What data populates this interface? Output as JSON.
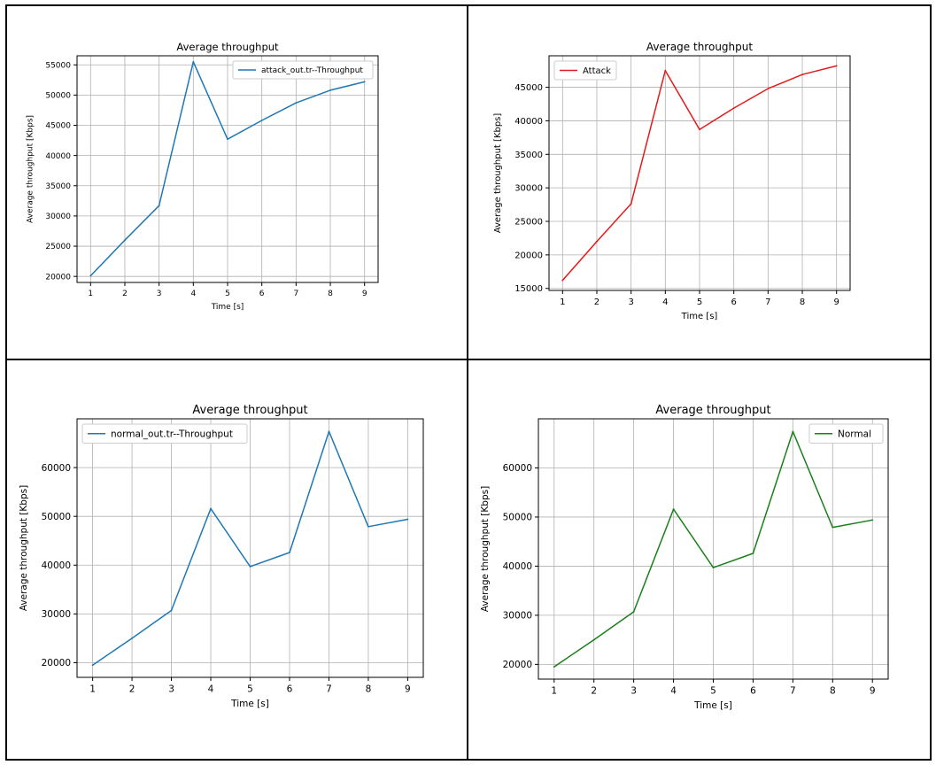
{
  "chart_data": [
    {
      "type": "line",
      "title": "Average throughput",
      "xlabel": "Time [s]",
      "ylabel": "Average throughput [Kbps]",
      "x": [
        1,
        2,
        3,
        4,
        5,
        6,
        7,
        8,
        9
      ],
      "xticks": [
        "1",
        "2",
        "3",
        "4",
        "5",
        "6",
        "7",
        "8",
        "9"
      ],
      "yticks": [
        20000,
        25000,
        30000,
        35000,
        40000,
        45000,
        50000,
        55000
      ],
      "ylim": [
        19000,
        56500
      ],
      "grid": true,
      "legend_position": "top-right",
      "series": [
        {
          "name": "attack_out.tr--Throughput",
          "color": "#1f77b4",
          "values": [
            20100,
            26000,
            31700,
            55500,
            42700,
            45800,
            48700,
            50800,
            52200
          ]
        }
      ]
    },
    {
      "type": "line",
      "title": "Average throughput",
      "xlabel": "Time [s]",
      "ylabel": "Average throughput [Kbps]",
      "x": [
        1,
        2,
        3,
        4,
        5,
        6,
        7,
        8,
        9
      ],
      "xticks": [
        "1",
        "2",
        "3",
        "4",
        "5",
        "6",
        "7",
        "8",
        "9"
      ],
      "yticks": [
        15000,
        20000,
        25000,
        30000,
        35000,
        40000,
        45000
      ],
      "ylim": [
        14700,
        49700
      ],
      "grid": true,
      "legend_position": "top-left",
      "series": [
        {
          "name": "Attack",
          "color": "#e41a1c",
          "values": [
            16200,
            22000,
            27600,
            47500,
            38700,
            41900,
            44800,
            46900,
            48200
          ]
        }
      ]
    },
    {
      "type": "line",
      "title": "Average throughput",
      "xlabel": "Time [s]",
      "ylabel": "Average throughput [Kbps]",
      "x": [
        1,
        2,
        3,
        4,
        5,
        6,
        7,
        8,
        9
      ],
      "xticks": [
        "1",
        "2",
        "3",
        "4",
        "5",
        "6",
        "7",
        "8",
        "9"
      ],
      "yticks": [
        20000,
        30000,
        40000,
        50000,
        60000
      ],
      "ylim": [
        17000,
        70000
      ],
      "grid": true,
      "legend_position": "top-left",
      "series": [
        {
          "name": "normal_out.tr--Throughput",
          "color": "#1f77b4",
          "values": [
            19500,
            25000,
            30700,
            51600,
            39700,
            42600,
            67400,
            47900,
            49400
          ]
        }
      ]
    },
    {
      "type": "line",
      "title": "Average throughput",
      "xlabel": "Time [s]",
      "ylabel": "Average throughput [Kbps]",
      "x": [
        1,
        2,
        3,
        4,
        5,
        6,
        7,
        8,
        9
      ],
      "xticks": [
        "1",
        "2",
        "3",
        "4",
        "5",
        "6",
        "7",
        "8",
        "9"
      ],
      "yticks": [
        20000,
        30000,
        40000,
        50000,
        60000
      ],
      "ylim": [
        17000,
        70000
      ],
      "grid": true,
      "legend_position": "top-right",
      "series": [
        {
          "name": "Normal",
          "color": "#1a7f1a",
          "values": [
            19500,
            25000,
            30700,
            51600,
            39700,
            42600,
            67400,
            47900,
            49400
          ]
        }
      ]
    }
  ]
}
